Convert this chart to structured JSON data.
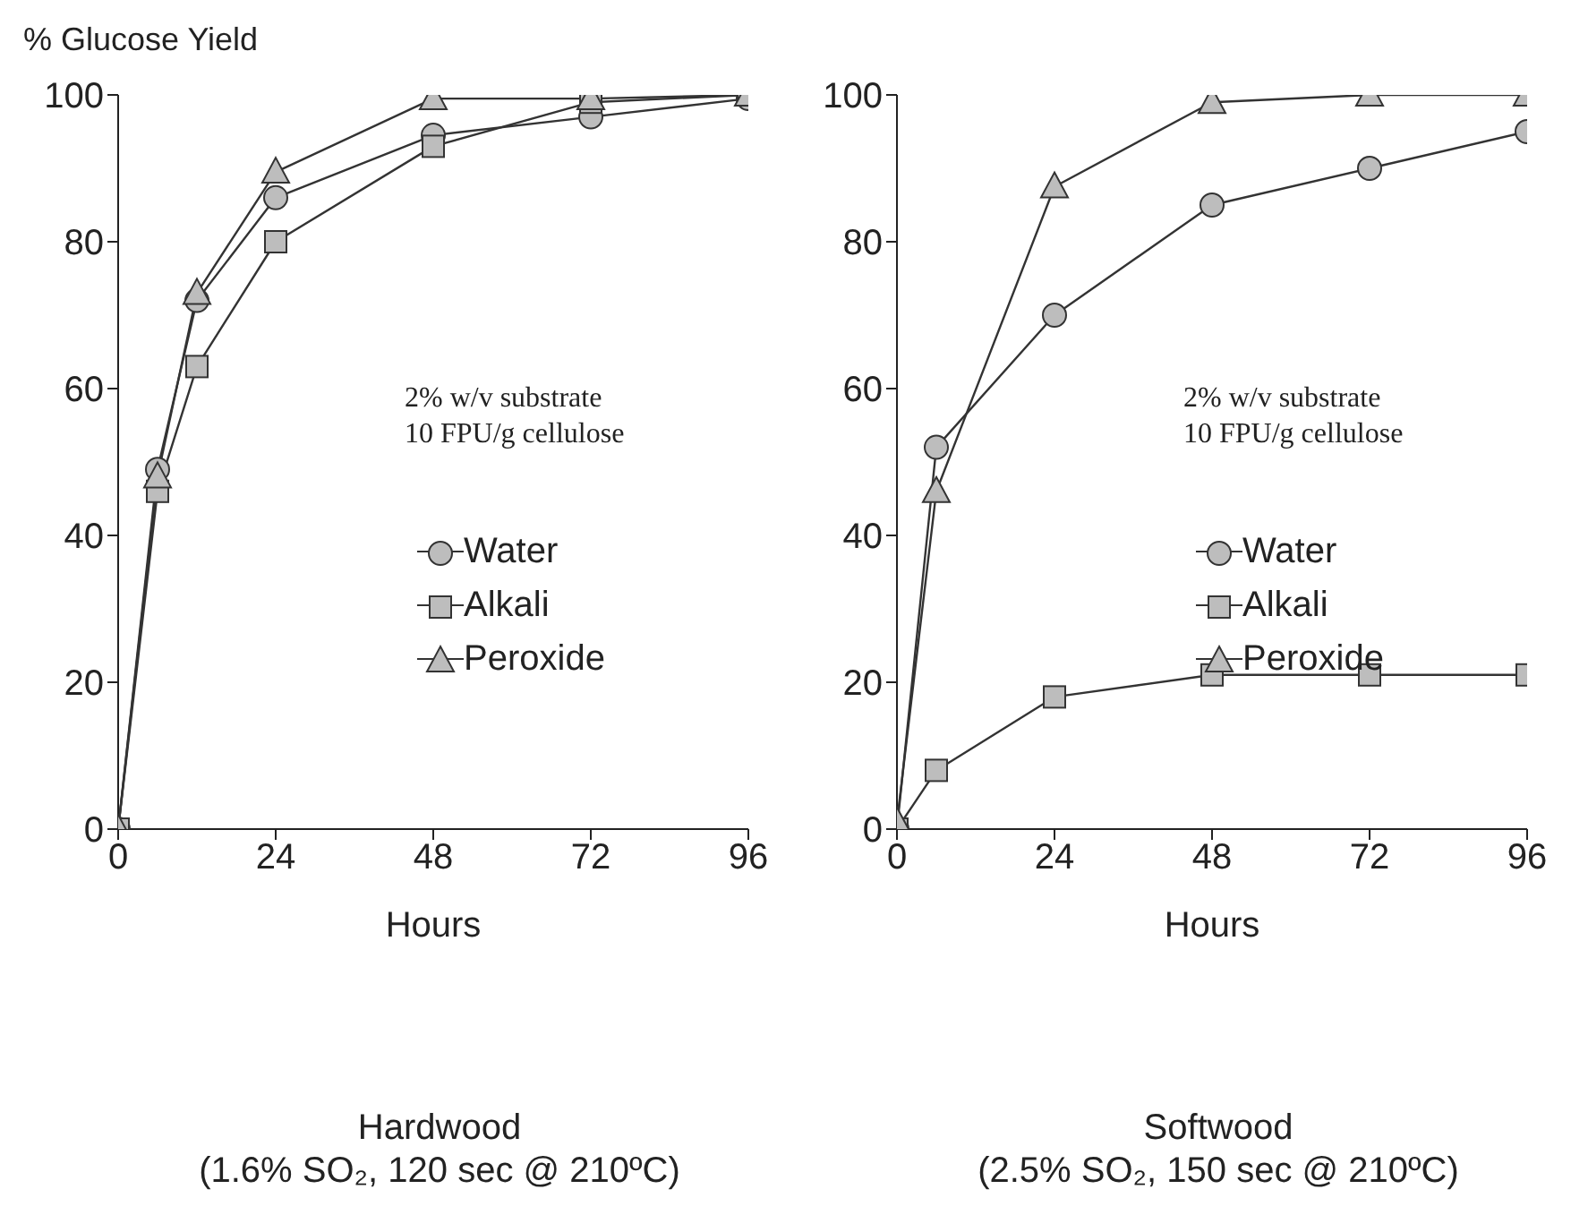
{
  "chart_data": [
    {
      "type": "line",
      "title": "Hardwood",
      "subtitle": "(1.6% SO₂, 120 sec @ 210ºC)",
      "xlabel": "Hours",
      "ylabel": "% Glucose Yield",
      "x": [
        0,
        6,
        12,
        24,
        48,
        72,
        96
      ],
      "xlim": [
        0,
        96
      ],
      "xticks": [
        0,
        24,
        48,
        72,
        96
      ],
      "ylim": [
        0,
        100
      ],
      "yticks": [
        0,
        20,
        40,
        60,
        80,
        100
      ],
      "legend": "right",
      "annotations": [
        "2% w/v substrate",
        "10 FPU/g cellulose"
      ],
      "series": [
        {
          "name": "Water",
          "color": "#333333",
          "marker": "circle",
          "values": [
            0,
            49,
            72,
            86,
            94.5,
            97,
            99.5
          ]
        },
        {
          "name": "Alkali",
          "color": "#333333",
          "marker": "square",
          "values": [
            0,
            46,
            63,
            80,
            93,
            99,
            100
          ]
        },
        {
          "name": "Peroxide",
          "color": "#333333",
          "marker": "triangle",
          "values": [
            0,
            48,
            73,
            89.5,
            99.5,
            99.5,
            100
          ]
        }
      ]
    },
    {
      "type": "line",
      "title": "Softwood",
      "subtitle": "(2.5% SO₂, 150 sec @ 210ºC)",
      "xlabel": "Hours",
      "x": [
        0,
        6,
        24,
        48,
        72,
        96
      ],
      "xlim": [
        0,
        96
      ],
      "xticks": [
        0,
        24,
        48,
        72,
        96
      ],
      "ylim": [
        0,
        100
      ],
      "yticks": [
        0,
        20,
        40,
        60,
        80,
        100
      ],
      "legend": "right",
      "annotations": [
        "2% w/v substrate",
        "10 FPU/g cellulose"
      ],
      "series": [
        {
          "name": "Water",
          "color": "#333333",
          "marker": "circle",
          "values": [
            0,
            52,
            70,
            85,
            90,
            95
          ]
        },
        {
          "name": "Alkali",
          "color": "#333333",
          "marker": "square",
          "values": [
            0,
            8,
            18,
            21,
            21,
            21
          ]
        },
        {
          "name": "Peroxide",
          "color": "#333333",
          "marker": "triangle",
          "values": [
            1,
            46,
            87.5,
            99,
            100,
            100
          ]
        }
      ]
    }
  ]
}
